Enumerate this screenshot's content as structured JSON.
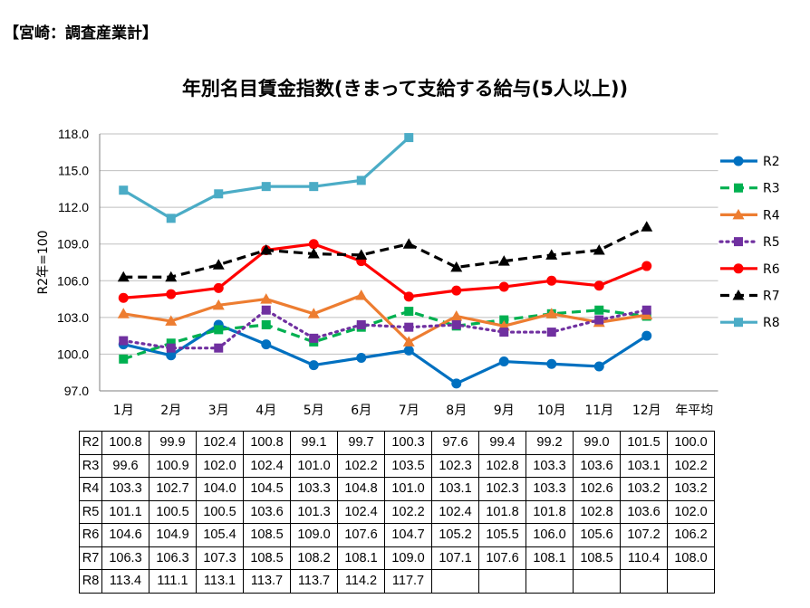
{
  "header": {
    "label": "【宮崎：調査産業計】"
  },
  "chart_data": {
    "type": "line",
    "title": "年別名目賃金指数(きまって支給する給与(5人以上))",
    "ylabel": "R2年=100",
    "xlabel": "",
    "categories": [
      "1月",
      "2月",
      "3月",
      "4月",
      "5月",
      "6月",
      "7月",
      "8月",
      "9月",
      "10月",
      "11月",
      "12月"
    ],
    "table_categories": [
      "1月",
      "2月",
      "3月",
      "4月",
      "5月",
      "6月",
      "7月",
      "8月",
      "9月",
      "10月",
      "11月",
      "12月",
      "年平均"
    ],
    "y_ticks": [
      "97.0",
      "100.0",
      "103.0",
      "106.0",
      "109.0",
      "112.0",
      "115.0",
      "118.0"
    ],
    "ylim": [
      97,
      118
    ],
    "grid": true,
    "legend_position": "right",
    "series": [
      {
        "name": "R2",
        "color": "#0070C0",
        "dash": "solid",
        "marker": "circle",
        "values": [
          100.8,
          99.9,
          102.4,
          100.8,
          99.1,
          99.7,
          100.3,
          97.6,
          99.4,
          99.2,
          99.0,
          101.5
        ],
        "table": [
          "100.8",
          "99.9",
          "102.4",
          "100.8",
          "99.1",
          "99.7",
          "100.3",
          "97.6",
          "99.4",
          "99.2",
          "99.0",
          "101.5",
          "100.0"
        ]
      },
      {
        "name": "R3",
        "color": "#00B050",
        "dash": "dash",
        "marker": "square",
        "values": [
          99.6,
          100.9,
          102.0,
          102.4,
          101.0,
          102.2,
          103.5,
          102.3,
          102.8,
          103.3,
          103.6,
          103.1
        ],
        "table": [
          "99.6",
          "100.9",
          "102.0",
          "102.4",
          "101.0",
          "102.2",
          "103.5",
          "102.3",
          "102.8",
          "103.3",
          "103.6",
          "103.1",
          "102.2"
        ]
      },
      {
        "name": "R4",
        "color": "#ED7D31",
        "dash": "solid",
        "marker": "triangle",
        "values": [
          103.3,
          102.7,
          104.0,
          104.5,
          103.3,
          104.8,
          101.0,
          103.1,
          102.3,
          103.3,
          102.6,
          103.2
        ],
        "table": [
          "103.3",
          "102.7",
          "104.0",
          "104.5",
          "103.3",
          "104.8",
          "101.0",
          "103.1",
          "102.3",
          "103.3",
          "102.6",
          "103.2",
          "103.2"
        ]
      },
      {
        "name": "R5",
        "color": "#7030A0",
        "dash": "dot",
        "marker": "square",
        "values": [
          101.1,
          100.5,
          100.5,
          103.6,
          101.3,
          102.4,
          102.2,
          102.4,
          101.8,
          101.8,
          102.8,
          103.6
        ],
        "table": [
          "101.1",
          "100.5",
          "100.5",
          "103.6",
          "101.3",
          "102.4",
          "102.2",
          "102.4",
          "101.8",
          "101.8",
          "102.8",
          "103.6",
          "102.0"
        ]
      },
      {
        "name": "R6",
        "color": "#FF0000",
        "dash": "solid",
        "marker": "circle",
        "values": [
          104.6,
          104.9,
          105.4,
          108.5,
          109.0,
          107.6,
          104.7,
          105.2,
          105.5,
          106.0,
          105.6,
          107.2
        ],
        "table": [
          "104.6",
          "104.9",
          "105.4",
          "108.5",
          "109.0",
          "107.6",
          "104.7",
          "105.2",
          "105.5",
          "106.0",
          "105.6",
          "107.2",
          "106.2"
        ]
      },
      {
        "name": "R7",
        "color": "#000000",
        "dash": "dash",
        "marker": "triangle",
        "values": [
          106.3,
          106.3,
          107.3,
          108.5,
          108.2,
          108.1,
          109.0,
          107.1,
          107.6,
          108.1,
          108.5,
          110.4
        ],
        "table": [
          "106.3",
          "106.3",
          "107.3",
          "108.5",
          "108.2",
          "108.1",
          "109.0",
          "107.1",
          "107.6",
          "108.1",
          "108.5",
          "110.4",
          "108.0"
        ]
      },
      {
        "name": "R8",
        "color": "#4BACC6",
        "dash": "solid",
        "marker": "square",
        "values": [
          113.4,
          111.1,
          113.1,
          113.7,
          113.7,
          114.2,
          117.7,
          null,
          null,
          null,
          null,
          null
        ],
        "table": [
          "113.4",
          "111.1",
          "113.1",
          "113.7",
          "113.7",
          "114.2",
          "117.7",
          "",
          "",
          "",
          "",
          "",
          ""
        ]
      }
    ]
  }
}
